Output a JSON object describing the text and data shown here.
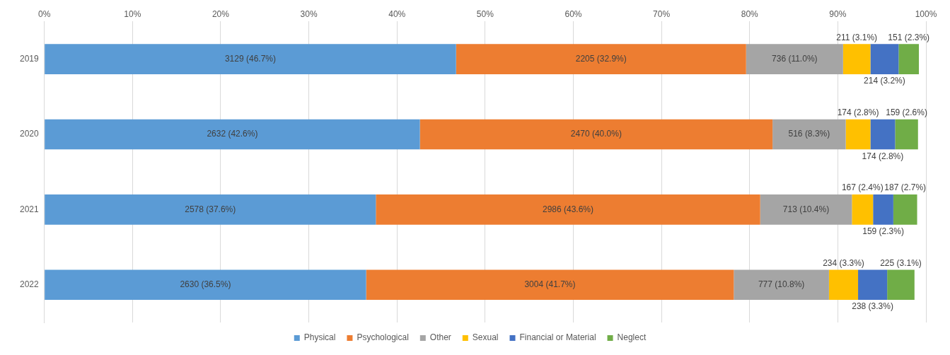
{
  "chart_data": {
    "type": "bar",
    "orientation": "horizontal",
    "stacked": true,
    "categories": [
      "2019",
      "2020",
      "2021",
      "2022"
    ],
    "series": [
      {
        "name": "Physical",
        "color": "#5b9bd5",
        "values": [
          46.7,
          42.6,
          37.6,
          36.5
        ],
        "value_labels": [
          "3129 (46.7%)",
          "2632 (42.6%)",
          "2578 (37.6%)",
          "2630 (36.5%)"
        ]
      },
      {
        "name": "Psychological",
        "color": "#ed7d31",
        "values": [
          32.9,
          40.0,
          43.6,
          41.7
        ],
        "value_labels": [
          "2205 (32.9%)",
          "2470 (40.0%)",
          "2986 (43.6%)",
          "3004 (41.7%)"
        ]
      },
      {
        "name": "Other",
        "color": "#a5a5a5",
        "values": [
          11.0,
          8.3,
          10.4,
          10.8
        ],
        "value_labels": [
          "736 (11.0%)",
          "516 (8.3%)",
          "713 (10.4%)",
          "777 (10.8%)"
        ]
      },
      {
        "name": "Sexual",
        "color": "#ffc000",
        "values": [
          3.1,
          2.8,
          2.4,
          3.3
        ],
        "value_labels": [
          "211 (3.1%)",
          "174 (2.8%)",
          "167 (2.4%)",
          "234 (3.3%)"
        ]
      },
      {
        "name": "Financial or Material",
        "color": "#4472c4",
        "values": [
          3.2,
          2.8,
          2.3,
          3.3
        ],
        "value_labels": [
          "214 (3.2%)",
          "174 (2.8%)",
          "159 (2.3%)",
          "238 (3.3%)"
        ]
      },
      {
        "name": "Neglect",
        "color": "#70ad47",
        "values": [
          2.3,
          2.6,
          2.7,
          3.1
        ],
        "value_labels": [
          "151 (2.3%)",
          "159 (2.6%)",
          "187 (2.7%)",
          "225 (3.1%)"
        ]
      }
    ],
    "xlim": [
      0,
      100
    ],
    "xticks": [
      {
        "value": 0,
        "label": "0%"
      },
      {
        "value": 10,
        "label": "10%"
      },
      {
        "value": 20,
        "label": "20%"
      },
      {
        "value": 30,
        "label": "30%"
      },
      {
        "value": 40,
        "label": "40%"
      },
      {
        "value": 50,
        "label": "50%"
      },
      {
        "value": 60,
        "label": "60%"
      },
      {
        "value": 70,
        "label": "70%"
      },
      {
        "value": 80,
        "label": "80%"
      },
      {
        "value": 90,
        "label": "90%"
      },
      {
        "value": 100,
        "label": "100%"
      }
    ],
    "grid": "x",
    "legend": "bottom"
  }
}
